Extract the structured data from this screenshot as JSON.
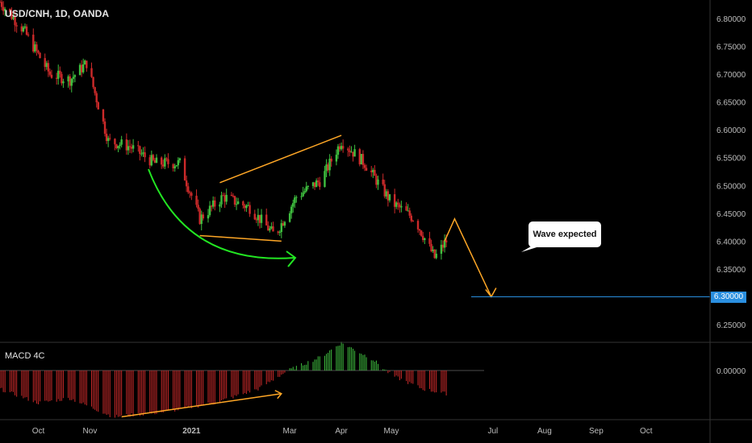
{
  "header": {
    "symbol_label": "USD/CNH, 1D, OANDA"
  },
  "macd": {
    "label": "MACD 4C"
  },
  "annotation": {
    "callout_text": "Wave expected"
  },
  "target": {
    "price_label": "6.30000"
  },
  "chart_data": [
    {
      "type": "candlestick",
      "title": "USD/CNH, 1D, OANDA",
      "y_axis": {
        "ticks": [
          "6.80000",
          "6.75000",
          "6.70000",
          "6.65000",
          "6.60000",
          "6.55000",
          "6.50000",
          "6.45000",
          "6.40000",
          "6.35000",
          "6.30000",
          "6.25000"
        ],
        "ylim": [
          6.22,
          6.83
        ],
        "position": "right"
      },
      "x_axis": {
        "ticks": [
          "Oct",
          "Nov",
          "2021",
          "Mar",
          "Apr",
          "May",
          "Jul",
          "Aug",
          "Sep",
          "Oct"
        ]
      },
      "path_keypoints": [
        {
          "date": "2020-09-08",
          "close": 6.83
        },
        {
          "date": "2020-09-22",
          "close": 6.78
        },
        {
          "date": "2020-10-08",
          "close": 6.7
        },
        {
          "date": "2020-10-20",
          "close": 6.69
        },
        {
          "date": "2020-10-30",
          "close": 6.72
        },
        {
          "date": "2020-11-12",
          "close": 6.58
        },
        {
          "date": "2020-11-25",
          "close": 6.57
        },
        {
          "date": "2020-12-10",
          "close": 6.54
        },
        {
          "date": "2020-12-25",
          "close": 6.54
        },
        {
          "date": "2021-01-06",
          "close": 6.44
        },
        {
          "date": "2021-01-20",
          "close": 6.48
        },
        {
          "date": "2021-02-05",
          "close": 6.46
        },
        {
          "date": "2021-02-20",
          "close": 6.41
        },
        {
          "date": "2021-03-05",
          "close": 6.48
        },
        {
          "date": "2021-03-20",
          "close": 6.51
        },
        {
          "date": "2021-04-01",
          "close": 6.58
        },
        {
          "date": "2021-04-15",
          "close": 6.54
        },
        {
          "date": "2021-05-01",
          "close": 6.47
        },
        {
          "date": "2021-05-15",
          "close": 6.44
        },
        {
          "date": "2021-05-27",
          "close": 6.37
        },
        {
          "date": "2021-06-03",
          "close": 6.4
        }
      ],
      "drawings": [
        {
          "kind": "trendline",
          "color": "#ffa726",
          "from": {
            "date": "2021-01-18",
            "price": 6.505
          },
          "to": {
            "date": "2021-04-01",
            "price": 6.59
          }
        },
        {
          "kind": "trendline",
          "color": "#ffa726",
          "from": {
            "date": "2021-01-06",
            "price": 6.41
          },
          "to": {
            "date": "2021-02-24",
            "price": 6.4
          }
        },
        {
          "kind": "projection",
          "color": "#ffa726",
          "points": [
            {
              "date": "2021-06-08",
              "price": 6.44
            },
            {
              "date": "2021-06-30",
              "price": 6.3
            }
          ]
        },
        {
          "kind": "curved-arrow",
          "color": "#22e622"
        },
        {
          "kind": "horizontal-line",
          "color": "#2a8fe0",
          "price": 6.3
        }
      ]
    },
    {
      "type": "bar",
      "title": "MACD 4C",
      "y_axis": {
        "ticks": [
          "0.00000"
        ]
      },
      "colors": {
        "positive": "#3fbf3f",
        "negative": "#cc2a2a"
      },
      "envelope_keypoints": [
        {
          "date": "2020-09-08",
          "value": -0.02
        },
        {
          "date": "2020-10-01",
          "value": -0.035
        },
        {
          "date": "2020-10-20",
          "value": -0.03
        },
        {
          "date": "2020-11-15",
          "value": -0.05
        },
        {
          "date": "2020-12-15",
          "value": -0.045
        },
        {
          "date": "2021-01-15",
          "value": -0.035
        },
        {
          "date": "2021-02-10",
          "value": -0.02
        },
        {
          "date": "2021-02-28",
          "value": 0.0
        },
        {
          "date": "2021-03-20",
          "value": 0.015
        },
        {
          "date": "2021-04-01",
          "value": 0.03
        },
        {
          "date": "2021-04-20",
          "value": 0.012
        },
        {
          "date": "2021-05-01",
          "value": -0.005
        },
        {
          "date": "2021-05-20",
          "value": -0.02
        },
        {
          "date": "2021-06-03",
          "value": -0.025
        }
      ],
      "drawings": [
        {
          "kind": "trendline",
          "color": "#ffa726",
          "from": {
            "date": "2020-11-20",
            "value": -0.05
          },
          "to": {
            "date": "2021-02-24",
            "value": -0.025
          }
        }
      ]
    }
  ]
}
